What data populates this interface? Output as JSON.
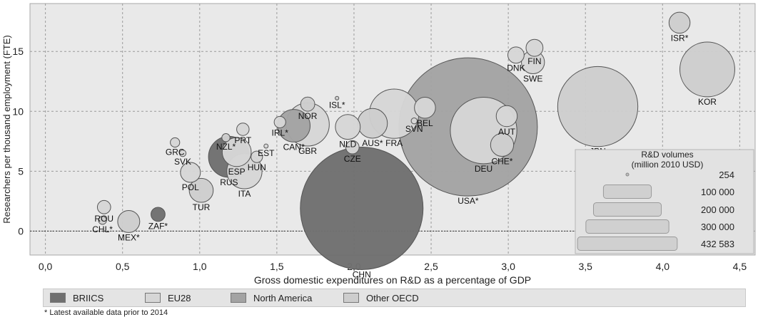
{
  "chart_data": {
    "type": "scatter",
    "title": "",
    "xlabel": "Gross domestic expenditures on  R&D as a percentage of GDP",
    "ylabel": "Researchers per thousand employment (FTE)",
    "xlim": [
      -0.1,
      4.6
    ],
    "ylim": [
      -2,
      19
    ],
    "xticks": [
      0,
      0.5,
      1.0,
      1.5,
      2.0,
      2.5,
      3.0,
      3.5,
      4.0,
      4.5
    ],
    "xtick_labels": [
      "0,0",
      "0,5",
      "1,0",
      "1,5",
      "2,0",
      "2,5",
      "3,0",
      "3,5",
      "4,0",
      "4,5"
    ],
    "yticks": [
      0,
      5,
      10,
      15
    ],
    "ytick_labels": [
      "0",
      "5",
      "10",
      "15"
    ],
    "grid": true,
    "colors": {
      "BRIICS": "#707070",
      "EU28": "#d6d6d6",
      "North America": "#a3a3a3",
      "Other OECD": "#cdcdcd"
    },
    "points": [
      {
        "label": "ROU",
        "x": 0.38,
        "y": 2.0,
        "size": 4000,
        "group": "EU28"
      },
      {
        "label": "CHL*",
        "x": 0.37,
        "y": 0.9,
        "size": 1500,
        "group": "Other OECD"
      },
      {
        "label": "MEX*",
        "x": 0.54,
        "y": 0.8,
        "size": 11000,
        "group": "Other OECD"
      },
      {
        "label": "ZAF*",
        "x": 0.73,
        "y": 1.4,
        "size": 4500,
        "group": "BRIICS"
      },
      {
        "label": "GRC",
        "x": 0.84,
        "y": 7.4,
        "size": 2000,
        "group": "EU28"
      },
      {
        "label": "SVK",
        "x": 0.89,
        "y": 6.5,
        "size": 1000,
        "group": "EU28"
      },
      {
        "label": "POL",
        "x": 0.94,
        "y": 4.9,
        "size": 9000,
        "group": "EU28"
      },
      {
        "label": "TUR",
        "x": 1.01,
        "y": 3.4,
        "size": 13000,
        "group": "Other OECD"
      },
      {
        "label": "NZL*",
        "x": 1.17,
        "y": 7.8,
        "size": 1500,
        "group": "Other OECD"
      },
      {
        "label": "PRT",
        "x": 1.28,
        "y": 8.5,
        "size": 3500,
        "group": "EU28"
      },
      {
        "label": "RUS",
        "x": 1.19,
        "y": 6.2,
        "size": 38000,
        "group": "BRIICS"
      },
      {
        "label": "ESP",
        "x": 1.24,
        "y": 6.6,
        "size": 19000,
        "group": "EU28"
      },
      {
        "label": "HUN",
        "x": 1.37,
        "y": 6.2,
        "size": 3000,
        "group": "EU28"
      },
      {
        "label": "ITA",
        "x": 1.29,
        "y": 5.0,
        "size": 28000,
        "group": "EU28"
      },
      {
        "label": "EST",
        "x": 1.43,
        "y": 7.1,
        "size": 400,
        "group": "EU28"
      },
      {
        "label": "IRL*",
        "x": 1.52,
        "y": 9.1,
        "size": 3000,
        "group": "EU28"
      },
      {
        "label": "CAN*",
        "x": 1.61,
        "y": 8.8,
        "size": 24000,
        "group": "North America"
      },
      {
        "label": "GBR",
        "x": 1.7,
        "y": 8.9,
        "size": 42000,
        "group": "EU28"
      },
      {
        "label": "NOR",
        "x": 1.7,
        "y": 10.6,
        "size": 4500,
        "group": "Other OECD"
      },
      {
        "label": "ISL*",
        "x": 1.89,
        "y": 11.1,
        "size": 300,
        "group": "Other OECD"
      },
      {
        "label": "NLD",
        "x": 1.96,
        "y": 8.7,
        "size": 14000,
        "group": "EU28"
      },
      {
        "label": "CZE",
        "x": 1.99,
        "y": 7.0,
        "size": 4000,
        "group": "EU28"
      },
      {
        "label": "AUS*",
        "x": 2.12,
        "y": 9.0,
        "size": 20000,
        "group": "Other OECD"
      },
      {
        "label": "FRA",
        "x": 2.26,
        "y": 9.8,
        "size": 55000,
        "group": "EU28"
      },
      {
        "label": "SVN",
        "x": 2.39,
        "y": 9.2,
        "size": 800,
        "group": "EU28"
      },
      {
        "label": "BEL",
        "x": 2.46,
        "y": 10.3,
        "size": 10000,
        "group": "EU28"
      },
      {
        "label": "CHN",
        "x": 2.05,
        "y": 1.9,
        "size": 340000,
        "group": "BRIICS"
      },
      {
        "label": "USA*",
        "x": 2.74,
        "y": 8.7,
        "size": 432583,
        "group": "North America"
      },
      {
        "label": "DEU",
        "x": 2.84,
        "y": 8.4,
        "size": 100000,
        "group": "EU28"
      },
      {
        "label": "AUT",
        "x": 2.99,
        "y": 9.6,
        "size": 10000,
        "group": "EU28"
      },
      {
        "label": "CHE*",
        "x": 2.96,
        "y": 7.2,
        "size": 12000,
        "group": "Other OECD"
      },
      {
        "label": "DNK",
        "x": 3.05,
        "y": 14.7,
        "size": 6000,
        "group": "EU28"
      },
      {
        "label": "FIN",
        "x": 3.17,
        "y": 15.3,
        "size": 6500,
        "group": "EU28"
      },
      {
        "label": "SWE",
        "x": 3.16,
        "y": 14.1,
        "size": 12000,
        "group": "EU28"
      },
      {
        "label": "JPN",
        "x": 3.58,
        "y": 10.4,
        "size": 145000,
        "group": "Other OECD"
      },
      {
        "label": "ISR*",
        "x": 4.11,
        "y": 17.4,
        "size": 10000,
        "group": "Other OECD"
      },
      {
        "label": "KOR",
        "x": 4.29,
        "y": 13.5,
        "size": 68000,
        "group": "Other OECD"
      }
    ],
    "size_legend": {
      "title": "R&D volumes",
      "subtitle": "(million 2010 USD)",
      "entries": [
        {
          "value": 254,
          "label": "254"
        },
        {
          "value": 100000,
          "label": "100 000"
        },
        {
          "value": 200000,
          "label": "200 000"
        },
        {
          "value": 300000,
          "label": "300 000"
        },
        {
          "value": 432583,
          "label": "432 583"
        }
      ]
    },
    "legend": [
      {
        "name": "BRIICS",
        "color": "#707070"
      },
      {
        "name": "EU28",
        "color": "#d6d6d6"
      },
      {
        "name": "North America",
        "color": "#a3a3a3"
      },
      {
        "name": "Other OECD",
        "color": "#cdcdcd"
      }
    ]
  },
  "footnote": "* Latest available data prior to 2014"
}
